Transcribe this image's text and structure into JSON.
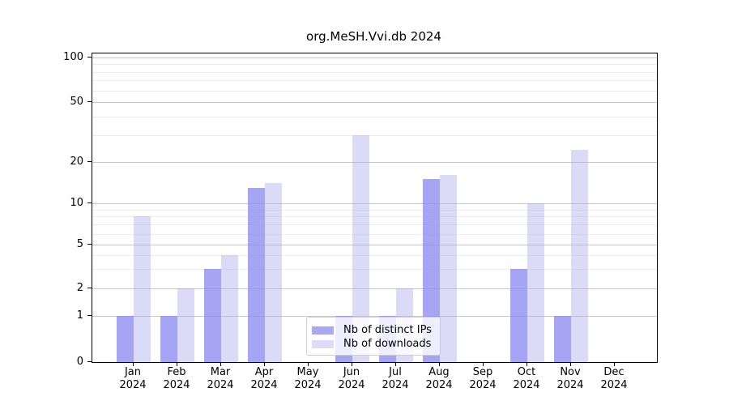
{
  "title": "org.MeSH.Vvi.db 2024",
  "chart_data": {
    "type": "bar",
    "title": "org.MeSH.Vvi.db 2024",
    "categories": [
      "Jan",
      "Feb",
      "Mar",
      "Apr",
      "May",
      "Jun",
      "Jul",
      "Aug",
      "Sep",
      "Oct",
      "Nov",
      "Dec"
    ],
    "year_label": "2024",
    "series": [
      {
        "name": "Nb of distinct IPs",
        "values": [
          1,
          1,
          3,
          13,
          0,
          1,
          1,
          15,
          0,
          3,
          1,
          0
        ],
        "fill": "rgba(140,140,240,0.78)",
        "swatch": "#a9a9f3"
      },
      {
        "name": "Nb of downloads",
        "values": [
          8,
          2,
          4,
          14,
          0,
          30,
          2,
          16,
          0,
          10,
          24,
          0
        ],
        "fill": "rgba(170,170,238,0.42)",
        "swatch": "#dcdcf8"
      }
    ],
    "y_axis": {
      "tick_values": [
        0,
        1,
        2,
        5,
        10,
        20,
        50,
        100
      ],
      "minor_tick_values": [
        3,
        4,
        6,
        7,
        8,
        9,
        30,
        40,
        60,
        70,
        80,
        90
      ],
      "scale": "log-like",
      "ylim": [
        0,
        100
      ]
    },
    "x_axis": {
      "tick_labels_line1": [
        "Jan",
        "Feb",
        "Mar",
        "Apr",
        "May",
        "Jun",
        "Jul",
        "Aug",
        "Sep",
        "Oct",
        "Nov",
        "Dec"
      ],
      "tick_labels_line2": [
        "2024",
        "2024",
        "2024",
        "2024",
        "2024",
        "2024",
        "2024",
        "2024",
        "2024",
        "2024",
        "2024",
        "2024"
      ]
    },
    "legend": {
      "position": "bottom-center-inside",
      "entries": [
        "Nb of distinct IPs",
        "Nb of downloads"
      ]
    },
    "grid": "on",
    "style": {
      "major_grid_color": "#c8c8c8",
      "minor_grid_color": "#ededed",
      "spine_color": "#000000",
      "background": "#ffffff"
    }
  }
}
